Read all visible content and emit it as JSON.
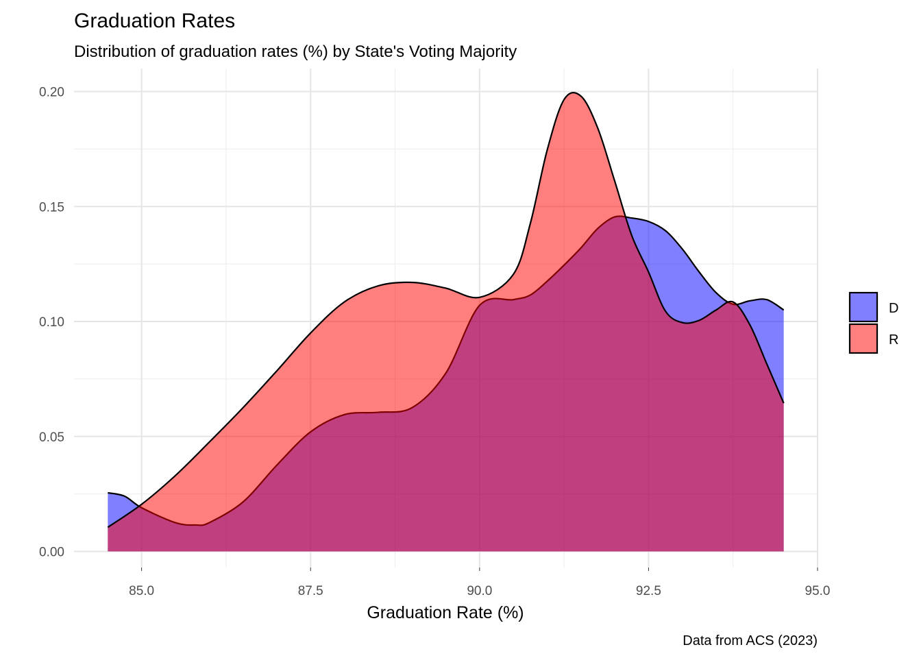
{
  "chart_data": {
    "type": "area",
    "title": "Graduation Rates",
    "subtitle": "Distribution of graduation rates (%) by State's Voting Majority",
    "xlabel": "Graduation Rate (%)",
    "ylabel": "",
    "caption": "Data from ACS (2023)",
    "xlim": [
      84.0,
      95.0
    ],
    "ylim": [
      -0.007,
      0.21
    ],
    "x_ticks": [
      85.0,
      87.5,
      90.0,
      92.5,
      95.0
    ],
    "x_tick_labels": [
      "85.0",
      "87.5",
      "90.0",
      "92.5",
      "95.0"
    ],
    "y_ticks": [
      0.0,
      0.05,
      0.1,
      0.15,
      0.2
    ],
    "y_tick_labels": [
      "0.00",
      "0.05",
      "0.10",
      "0.15",
      "0.20"
    ],
    "grid": true,
    "legend_position": "right",
    "series": [
      {
        "name": "D",
        "color": "#0000FF",
        "opacity": 0.5,
        "x": [
          84.5,
          84.75,
          85.0,
          85.5,
          85.8,
          86.0,
          86.5,
          87.0,
          87.5,
          88.0,
          88.5,
          89.0,
          89.5,
          90.0,
          90.5,
          90.75,
          91.0,
          91.25,
          91.5,
          91.75,
          92.0,
          92.25,
          92.5,
          92.75,
          93.0,
          93.25,
          93.5,
          93.75,
          94.0,
          94.25,
          94.5
        ],
        "values": [
          0.0255,
          0.024,
          0.019,
          0.0125,
          0.0115,
          0.0125,
          0.0215,
          0.0375,
          0.052,
          0.0595,
          0.0605,
          0.0625,
          0.0775,
          0.107,
          0.1095,
          0.1115,
          0.1175,
          0.1245,
          0.132,
          0.1405,
          0.1455,
          0.145,
          0.1435,
          0.1395,
          0.1315,
          0.1215,
          0.1125,
          0.1075,
          0.109,
          0.1095,
          0.105
        ]
      },
      {
        "name": "R",
        "color": "#FF0000",
        "opacity": 0.5,
        "x": [
          84.5,
          85.0,
          85.5,
          86.0,
          86.5,
          87.0,
          87.5,
          88.0,
          88.5,
          89.0,
          89.5,
          90.0,
          90.5,
          90.75,
          91.0,
          91.25,
          91.5,
          91.75,
          92.0,
          92.25,
          92.5,
          92.75,
          93.0,
          93.25,
          93.5,
          93.75,
          94.0,
          94.25,
          94.5
        ],
        "values": [
          0.0105,
          0.0205,
          0.033,
          0.0475,
          0.0625,
          0.0785,
          0.095,
          0.1085,
          0.1155,
          0.117,
          0.1145,
          0.1105,
          0.1205,
          0.1425,
          0.1745,
          0.1965,
          0.198,
          0.184,
          0.161,
          0.1375,
          0.1215,
          0.1045,
          0.0995,
          0.1005,
          0.105,
          0.1085,
          0.0985,
          0.0815,
          0.0645
        ]
      }
    ]
  },
  "legend": {
    "items": [
      {
        "label": "D",
        "color": "#0000FF"
      },
      {
        "label": "R",
        "color": "#FF0000"
      }
    ]
  }
}
